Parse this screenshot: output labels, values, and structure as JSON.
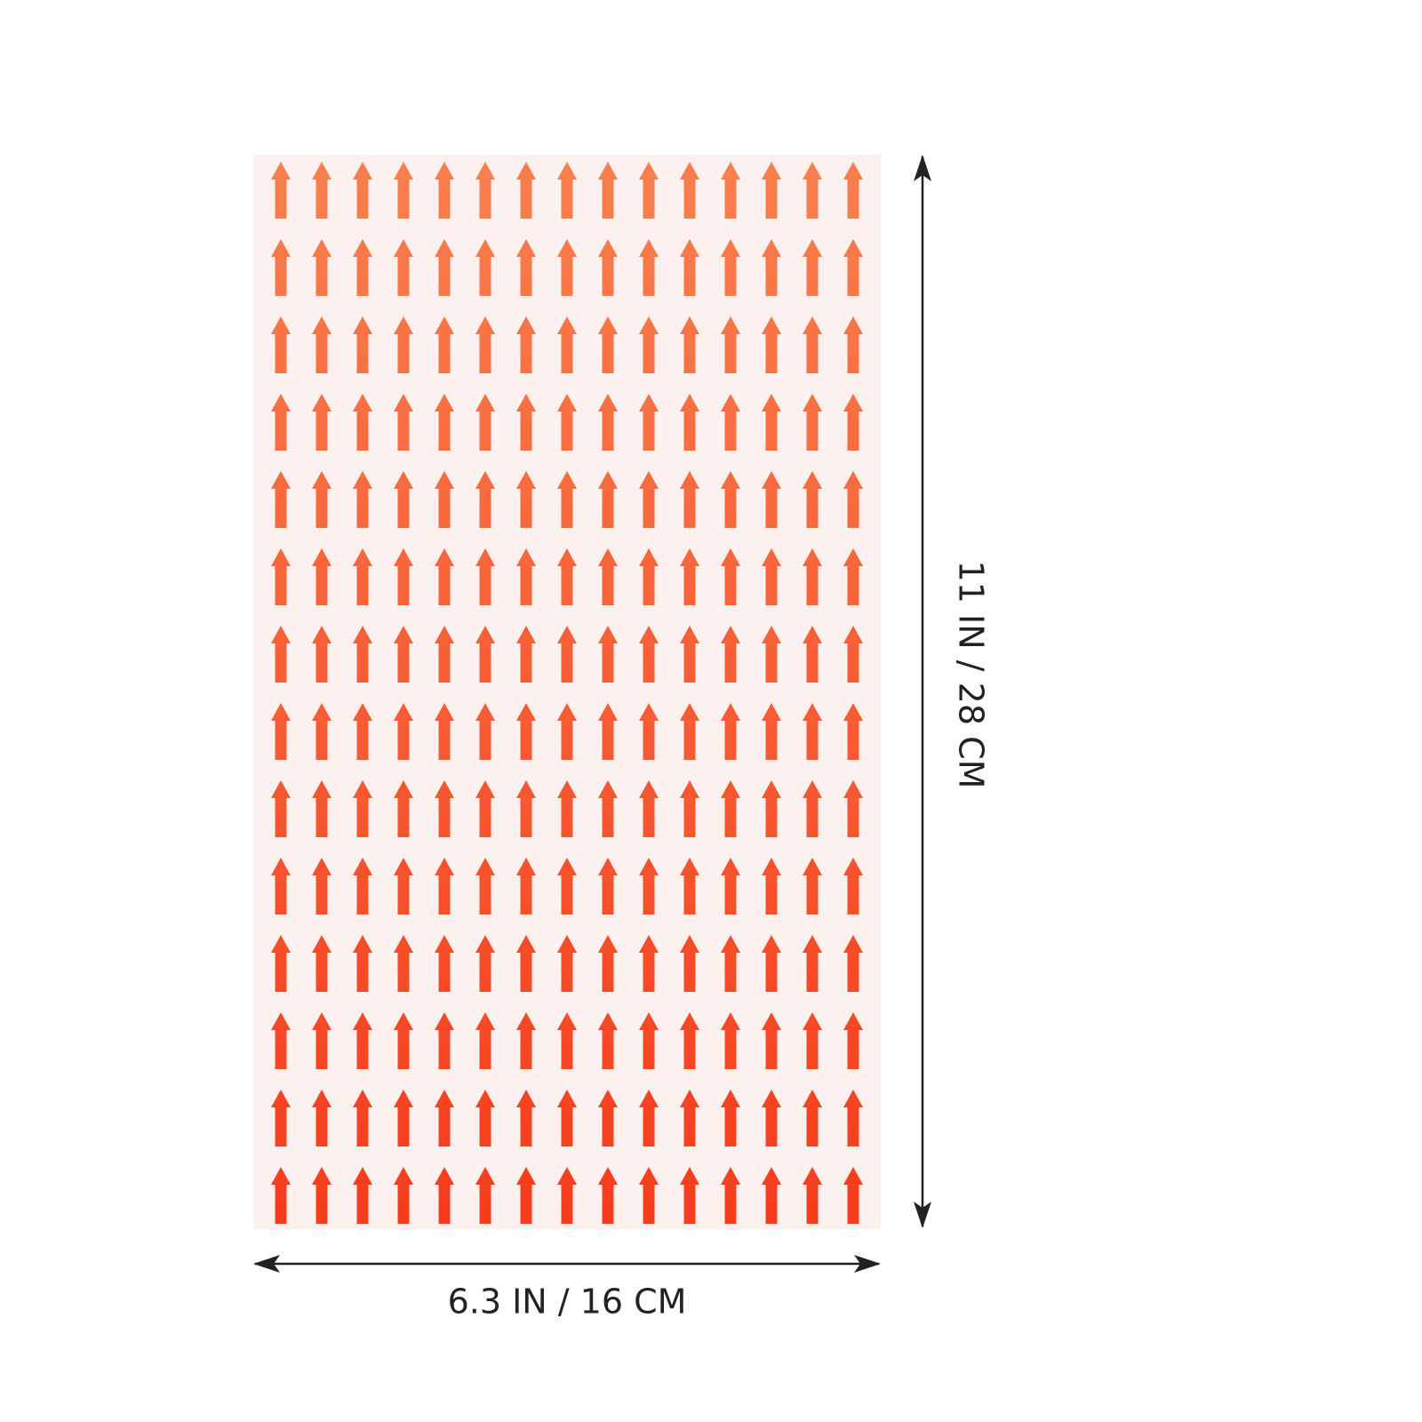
{
  "dimensions": {
    "width": "6.3 IN / 16 CM",
    "height": "11 IN / 28 CM"
  }
}
